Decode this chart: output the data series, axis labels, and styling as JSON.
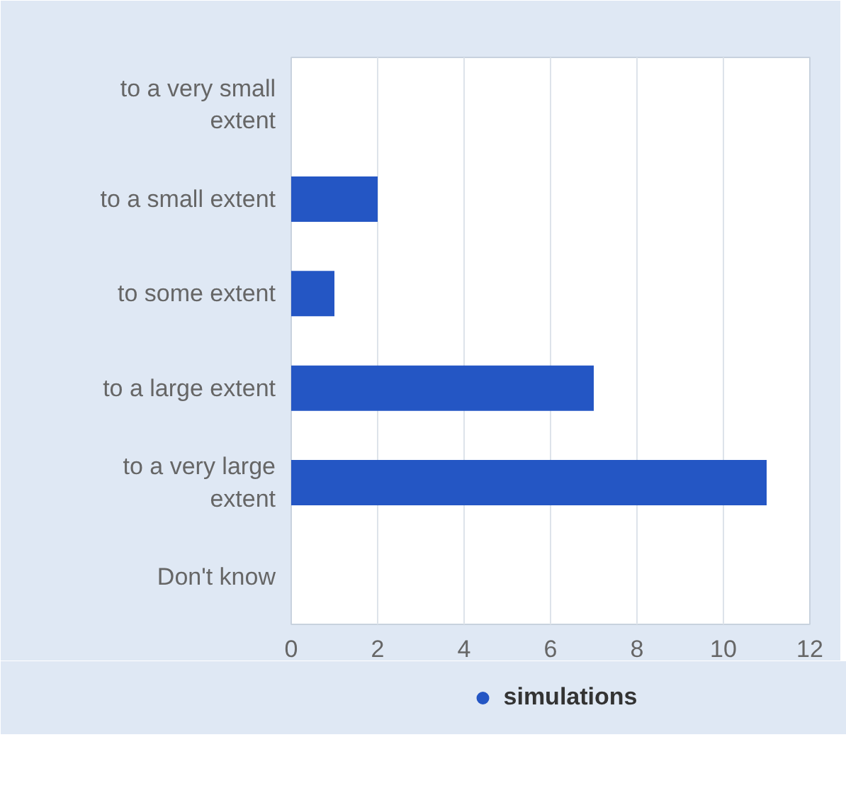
{
  "chart_data": {
    "type": "bar",
    "orientation": "horizontal",
    "categories": [
      "to a very small extent",
      "to a small extent",
      "to some extent",
      "to a large extent",
      "to a very large extent",
      "Don't know"
    ],
    "series": [
      {
        "name": "simulations",
        "color": "#2456c4",
        "values": [
          0,
          2,
          1,
          7,
          11,
          0
        ]
      }
    ],
    "xlim": [
      0,
      12
    ],
    "xticks": [
      0,
      2,
      4,
      6,
      8,
      10,
      12
    ],
    "grid": "x",
    "legend": "bottom"
  }
}
